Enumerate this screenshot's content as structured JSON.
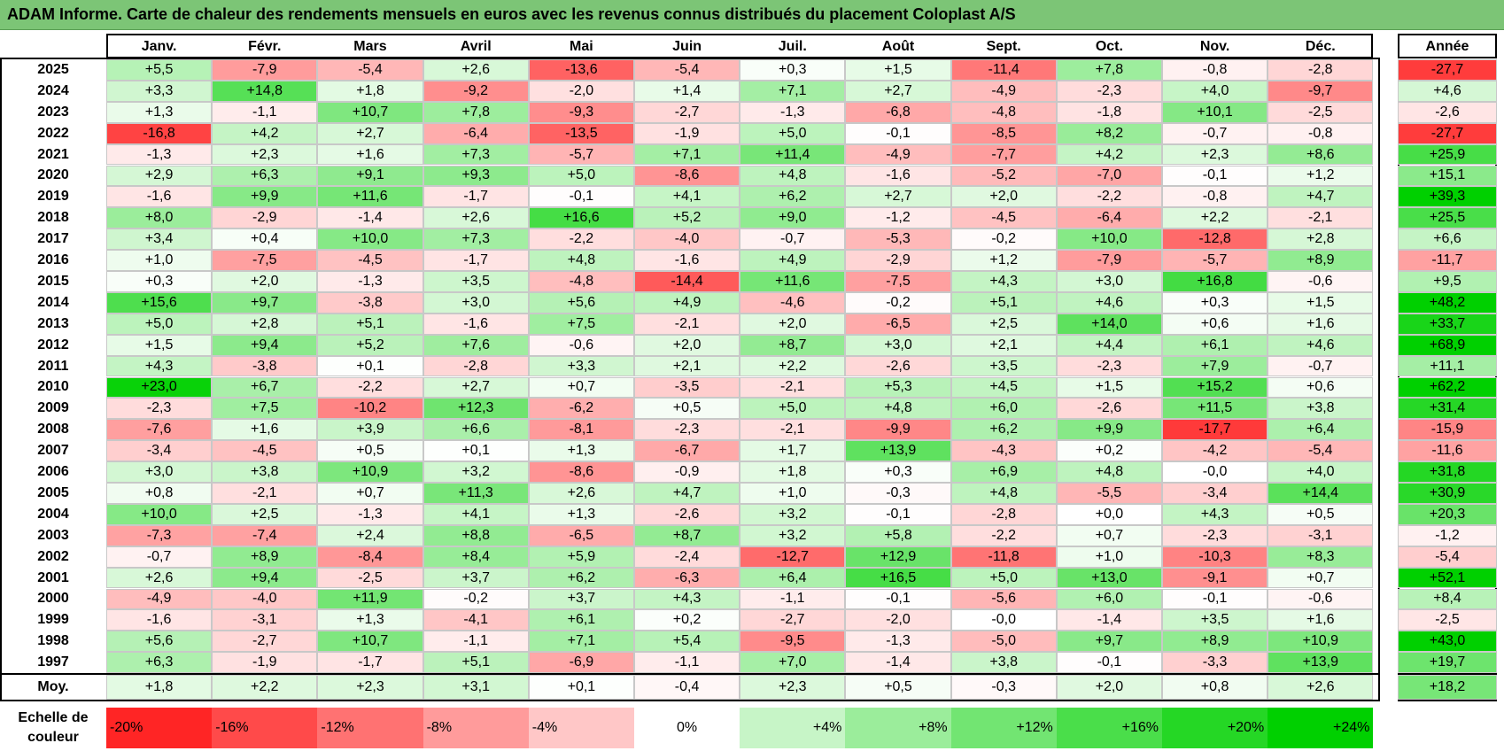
{
  "title": "ADAM Informe. Carte de chaleur des rendements mensuels en euros avec les revenus connus distribués du placement Coloplast A/S",
  "months": [
    "Janv.",
    "Févr.",
    "Mars",
    "Avril",
    "Mai",
    "Juin",
    "Juil.",
    "Août",
    "Sept.",
    "Oct.",
    "Nov.",
    "Déc."
  ],
  "year_header": "Année",
  "avg_label": "Moy.",
  "scale_label": "Echelle de couleur",
  "colors": {
    "title_bg": "#7cc576",
    "positive": "#00d000",
    "negative": "#ff0000",
    "neutral": "#ffffff"
  },
  "chart_data": {
    "type": "heatmap",
    "title": "ADAM Informe. Carte de chaleur des rendements mensuels en euros avec les revenus connus distribués du placement Coloplast A/S",
    "columns": [
      "Janv.",
      "Févr.",
      "Mars",
      "Avril",
      "Mai",
      "Juin",
      "Juil.",
      "Août",
      "Sept.",
      "Oct.",
      "Nov.",
      "Déc."
    ],
    "rows": [
      {
        "year": "2025",
        "values": [
          "+5,5",
          "-7,9",
          "-5,4",
          "+2,6",
          "-13,6",
          "-5,4",
          "+0,3",
          "+1,5",
          "-11,4",
          "+7,8",
          "-0,8",
          "-2,8"
        ],
        "annual": "-27,7"
      },
      {
        "year": "2024",
        "values": [
          "+3,3",
          "+14,8",
          "+1,8",
          "-9,2",
          "-2,0",
          "+1,4",
          "+7,1",
          "+2,7",
          "-4,9",
          "-2,3",
          "+4,0",
          "-9,7"
        ],
        "annual": "+4,6"
      },
      {
        "year": "2023",
        "values": [
          "+1,3",
          "-1,1",
          "+10,7",
          "+7,8",
          "-9,3",
          "-2,7",
          "-1,3",
          "-6,8",
          "-4,8",
          "-1,8",
          "+10,1",
          "-2,5"
        ],
        "annual": "-2,6"
      },
      {
        "year": "2022",
        "values": [
          "-16,8",
          "+4,2",
          "+2,7",
          "-6,4",
          "-13,5",
          "-1,9",
          "+5,0",
          "-0,1",
          "-8,5",
          "+8,2",
          "-0,7",
          "-0,8"
        ],
        "annual": "-27,7"
      },
      {
        "year": "2021",
        "values": [
          "-1,3",
          "+2,3",
          "+1,6",
          "+7,3",
          "-5,7",
          "+7,1",
          "+11,4",
          "-4,9",
          "-7,7",
          "+4,2",
          "+2,3",
          "+8,6"
        ],
        "annual": "+25,9"
      },
      {
        "year": "2020",
        "values": [
          "+2,9",
          "+6,3",
          "+9,1",
          "+9,3",
          "+5,0",
          "-8,6",
          "+4,8",
          "-1,6",
          "-5,2",
          "-7,0",
          "-0,1",
          "+1,2"
        ],
        "annual": "+15,1"
      },
      {
        "year": "2019",
        "values": [
          "-1,6",
          "+9,9",
          "+11,6",
          "-1,7",
          "-0,1",
          "+4,1",
          "+6,2",
          "+2,7",
          "+2,0",
          "-2,2",
          "-0,8",
          "+4,7"
        ],
        "annual": "+39,3"
      },
      {
        "year": "2018",
        "values": [
          "+8,0",
          "-2,9",
          "-1,4",
          "+2,6",
          "+16,6",
          "+5,2",
          "+9,0",
          "-1,2",
          "-4,5",
          "-6,4",
          "+2,2",
          "-2,1"
        ],
        "annual": "+25,5"
      },
      {
        "year": "2017",
        "values": [
          "+3,4",
          "+0,4",
          "+10,0",
          "+7,3",
          "-2,2",
          "-4,0",
          "-0,7",
          "-5,3",
          "-0,2",
          "+10,0",
          "-12,8",
          "+2,8"
        ],
        "annual": "+6,6"
      },
      {
        "year": "2016",
        "values": [
          "+1,0",
          "-7,5",
          "-4,5",
          "-1,7",
          "+4,8",
          "-1,6",
          "+4,9",
          "-2,9",
          "+1,2",
          "-7,9",
          "-5,7",
          "+8,9"
        ],
        "annual": "-11,7"
      },
      {
        "year": "2015",
        "values": [
          "+0,3",
          "+2,0",
          "-1,3",
          "+3,5",
          "-4,8",
          "-14,4",
          "+11,6",
          "-7,5",
          "+4,3",
          "+3,0",
          "+16,8",
          "-0,6"
        ],
        "annual": "+9,5"
      },
      {
        "year": "2014",
        "values": [
          "+15,6",
          "+9,7",
          "-3,8",
          "+3,0",
          "+5,6",
          "+4,9",
          "-4,6",
          "-0,2",
          "+5,1",
          "+4,6",
          "+0,3",
          "+1,5"
        ],
        "annual": "+48,2"
      },
      {
        "year": "2013",
        "values": [
          "+5,0",
          "+2,8",
          "+5,1",
          "-1,6",
          "+7,5",
          "-2,1",
          "+2,0",
          "-6,5",
          "+2,5",
          "+14,0",
          "+0,6",
          "+1,6"
        ],
        "annual": "+33,7"
      },
      {
        "year": "2012",
        "values": [
          "+1,5",
          "+9,4",
          "+5,2",
          "+7,6",
          "-0,6",
          "+2,0",
          "+8,7",
          "+3,0",
          "+2,1",
          "+4,4",
          "+6,1",
          "+4,6"
        ],
        "annual": "+68,9"
      },
      {
        "year": "2011",
        "values": [
          "+4,3",
          "-3,8",
          "+0,1",
          "-2,8",
          "+3,3",
          "+2,1",
          "+2,2",
          "-2,6",
          "+3,5",
          "-2,3",
          "+7,9",
          "-0,7"
        ],
        "annual": "+11,1"
      },
      {
        "year": "2010",
        "values": [
          "+23,0",
          "+6,7",
          "-2,2",
          "+2,7",
          "+0,7",
          "-3,5",
          "-2,1",
          "+5,3",
          "+4,5",
          "+1,5",
          "+15,2",
          "+0,6"
        ],
        "annual": "+62,2"
      },
      {
        "year": "2009",
        "values": [
          "-2,3",
          "+7,5",
          "-10,2",
          "+12,3",
          "-6,2",
          "+0,5",
          "+5,0",
          "+4,8",
          "+6,0",
          "-2,6",
          "+11,5",
          "+3,8"
        ],
        "annual": "+31,4"
      },
      {
        "year": "2008",
        "values": [
          "-7,6",
          "+1,6",
          "+3,9",
          "+6,6",
          "-8,1",
          "-2,3",
          "-2,1",
          "-9,9",
          "+6,2",
          "+9,9",
          "-17,7",
          "+6,4"
        ],
        "annual": "-15,9"
      },
      {
        "year": "2007",
        "values": [
          "-3,4",
          "-4,5",
          "+0,5",
          "+0,1",
          "+1,3",
          "-6,7",
          "+1,7",
          "+13,9",
          "-4,3",
          "+0,2",
          "-4,2",
          "-5,4"
        ],
        "annual": "-11,6"
      },
      {
        "year": "2006",
        "values": [
          "+3,0",
          "+3,8",
          "+10,9",
          "+3,2",
          "-8,6",
          "-0,9",
          "+1,8",
          "+0,3",
          "+6,9",
          "+4,8",
          "-0,0",
          "+4,0"
        ],
        "annual": "+31,8"
      },
      {
        "year": "2005",
        "values": [
          "+0,8",
          "-2,1",
          "+0,7",
          "+11,3",
          "+2,6",
          "+4,7",
          "+1,0",
          "-0,3",
          "+4,8",
          "-5,5",
          "-3,4",
          "+14,4"
        ],
        "annual": "+30,9"
      },
      {
        "year": "2004",
        "values": [
          "+10,0",
          "+2,5",
          "-1,3",
          "+4,1",
          "+1,3",
          "-2,6",
          "+3,2",
          "-0,1",
          "-2,8",
          "+0,0",
          "+4,3",
          "+0,5"
        ],
        "annual": "+20,3"
      },
      {
        "year": "2003",
        "values": [
          "-7,3",
          "-7,4",
          "+2,4",
          "+8,8",
          "-6,5",
          "+8,7",
          "+3,2",
          "+5,8",
          "-2,2",
          "+0,7",
          "-2,3",
          "-3,1"
        ],
        "annual": "-1,2"
      },
      {
        "year": "2002",
        "values": [
          "-0,7",
          "+8,9",
          "-8,4",
          "+8,4",
          "+5,9",
          "-2,4",
          "-12,7",
          "+12,9",
          "-11,8",
          "+1,0",
          "-10,3",
          "+8,3"
        ],
        "annual": "-5,4"
      },
      {
        "year": "2001",
        "values": [
          "+2,6",
          "+9,4",
          "-2,5",
          "+3,7",
          "+6,2",
          "-6,3",
          "+6,4",
          "+16,5",
          "+5,0",
          "+13,0",
          "-9,1",
          "+0,7"
        ],
        "annual": "+52,1"
      },
      {
        "year": "2000",
        "values": [
          "-4,9",
          "-4,0",
          "+11,9",
          "-0,2",
          "+3,7",
          "+4,3",
          "-1,1",
          "-0,1",
          "-5,6",
          "+6,0",
          "-0,1",
          "-0,6"
        ],
        "annual": "+8,4"
      },
      {
        "year": "1999",
        "values": [
          "-1,6",
          "-3,1",
          "+1,3",
          "-4,1",
          "+6,1",
          "+0,2",
          "-2,7",
          "-2,0",
          "-0,0",
          "-1,4",
          "+3,5",
          "+1,6"
        ],
        "annual": "-2,5"
      },
      {
        "year": "1998",
        "values": [
          "+5,6",
          "-2,7",
          "+10,7",
          "-1,1",
          "+7,1",
          "+5,4",
          "-9,5",
          "-1,3",
          "-5,0",
          "+9,7",
          "+8,9",
          "+10,9"
        ],
        "annual": "+43,0"
      },
      {
        "year": "1997",
        "values": [
          "+6,3",
          "-1,9",
          "-1,7",
          "+5,1",
          "-6,9",
          "-1,1",
          "+7,0",
          "-1,4",
          "+3,8",
          "-0,1",
          "-3,3",
          "+13,9"
        ],
        "annual": "+19,7"
      }
    ],
    "averages": [
      "+1,8",
      "+2,2",
      "+2,3",
      "+3,1",
      "+0,1",
      "-0,4",
      "+2,3",
      "+0,5",
      "-0,3",
      "+2,0",
      "+0,8",
      "+2,6"
    ],
    "average_annual": "+18,2",
    "color_scale": [
      "-20%",
      "-16%",
      "-12%",
      "-8%",
      "-4%",
      "0%",
      "+4%",
      "+8%",
      "+12%",
      "+16%",
      "+20%",
      "+24%"
    ]
  }
}
